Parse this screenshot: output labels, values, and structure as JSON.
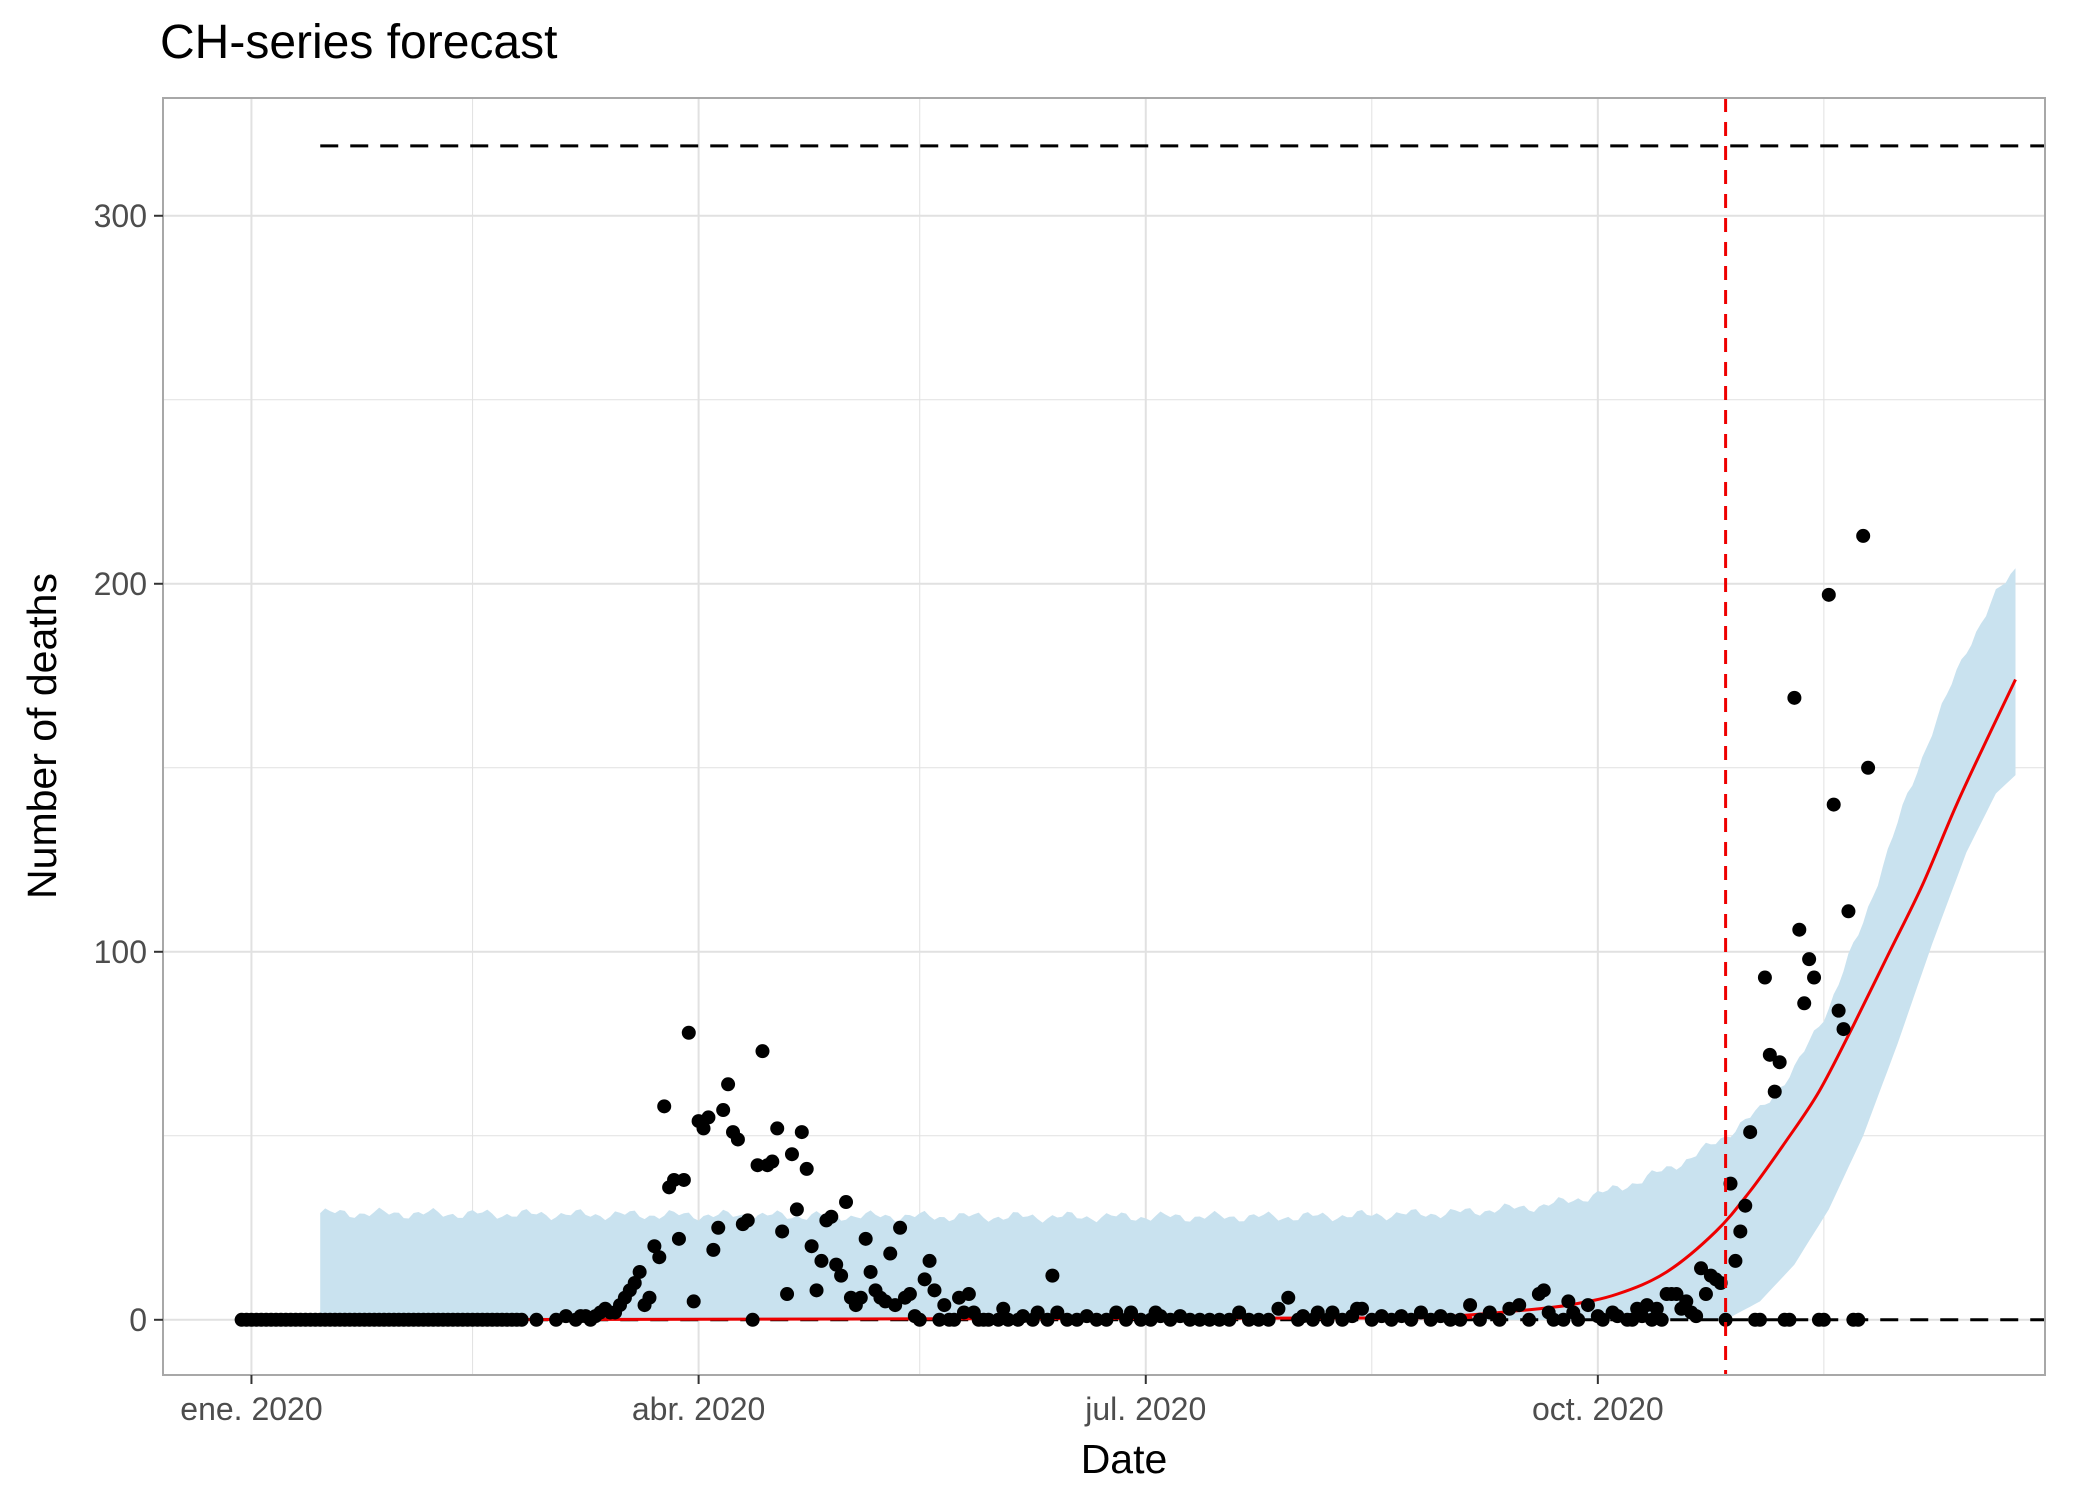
{
  "chart_data": {
    "type": "scatter",
    "title": "CH-series forecast",
    "xlabel": "Date",
    "ylabel": "Number of deaths",
    "x_range": [
      "2019-12-14",
      "2020-12-31"
    ],
    "ylim": [
      -15,
      332
    ],
    "x_ticks": [
      {
        "date": "2020-01-01",
        "label": "ene. 2020"
      },
      {
        "date": "2020-04-01",
        "label": "abr. 2020"
      },
      {
        "date": "2020-07-01",
        "label": "jul. 2020"
      },
      {
        "date": "2020-10-01",
        "label": "oct. 2020"
      }
    ],
    "x_minor_ticks": [
      "2020-02-15",
      "2020-05-16",
      "2020-08-16",
      "2020-11-16"
    ],
    "y_ticks": [
      0,
      100,
      200,
      300
    ],
    "y_minor_ticks": [
      50,
      150,
      250
    ],
    "grid": true,
    "colors": {
      "points": "#000000",
      "band": "#c9e2ef",
      "fit_line": "#ee0000",
      "reference_lines": "#000000",
      "cutoff_line": "#ee0000",
      "grid": "#e1e1e1",
      "panel_border": "#a8a8a8"
    },
    "reference_lines": {
      "upper": 319,
      "lower": 0,
      "start": "2020-01-15",
      "end": "2020-12-31"
    },
    "cutoff_date": "2020-10-27",
    "fit_start": "2020-01-15",
    "band": [
      {
        "date": "2020-01-15",
        "low": 0,
        "high": 29
      },
      {
        "date": "2020-06-01",
        "low": 0,
        "high": 28
      },
      {
        "date": "2020-08-01",
        "low": 0,
        "high": 28
      },
      {
        "date": "2020-09-01",
        "low": 0,
        "high": 29
      },
      {
        "date": "2020-09-20",
        "low": 0,
        "high": 31
      },
      {
        "date": "2020-10-01",
        "low": 0,
        "high": 34
      },
      {
        "date": "2020-10-10",
        "low": 0,
        "high": 38
      },
      {
        "date": "2020-10-20",
        "low": 0,
        "high": 44
      },
      {
        "date": "2020-10-27",
        "low": 0,
        "high": 50
      },
      {
        "date": "2020-11-03",
        "low": 5,
        "high": 57
      },
      {
        "date": "2020-11-10",
        "low": 15,
        "high": 68
      },
      {
        "date": "2020-11-17",
        "low": 30,
        "high": 85
      },
      {
        "date": "2020-11-24",
        "low": 50,
        "high": 108
      },
      {
        "date": "2020-12-01",
        "low": 75,
        "high": 135
      },
      {
        "date": "2020-12-08",
        "low": 102,
        "high": 160
      },
      {
        "date": "2020-12-15",
        "low": 127,
        "high": 182
      },
      {
        "date": "2020-12-21",
        "low": 143,
        "high": 197
      },
      {
        "date": "2020-12-25",
        "low": 148,
        "high": 204
      }
    ],
    "fit": [
      {
        "date": "2020-01-15",
        "y": 0
      },
      {
        "date": "2020-08-15",
        "y": 0.5
      },
      {
        "date": "2020-09-01",
        "y": 1
      },
      {
        "date": "2020-09-15",
        "y": 2.5
      },
      {
        "date": "2020-09-25",
        "y": 4
      },
      {
        "date": "2020-10-05",
        "y": 7
      },
      {
        "date": "2020-10-15",
        "y": 13
      },
      {
        "date": "2020-10-25",
        "y": 24
      },
      {
        "date": "2020-11-01",
        "y": 35
      },
      {
        "date": "2020-11-08",
        "y": 48
      },
      {
        "date": "2020-11-15",
        "y": 62
      },
      {
        "date": "2020-11-22",
        "y": 80
      },
      {
        "date": "2020-11-29",
        "y": 99
      },
      {
        "date": "2020-12-06",
        "y": 118
      },
      {
        "date": "2020-12-13",
        "y": 140
      },
      {
        "date": "2020-12-20",
        "y": 160
      },
      {
        "date": "2020-12-25",
        "y": 174
      }
    ],
    "zero_points": {
      "start": "2019-12-30",
      "end": "2020-02-24"
    },
    "points": [
      [
        "2020-02-25",
        0
      ],
      [
        "2020-02-28",
        0
      ],
      [
        "2020-03-03",
        0
      ],
      [
        "2020-03-05",
        1
      ],
      [
        "2020-03-07",
        0
      ],
      [
        "2020-03-08",
        1
      ],
      [
        "2020-03-09",
        1
      ],
      [
        "2020-03-10",
        0
      ],
      [
        "2020-03-11",
        1
      ],
      [
        "2020-03-12",
        2
      ],
      [
        "2020-03-13",
        3
      ],
      [
        "2020-03-14",
        2
      ],
      [
        "2020-03-15",
        2
      ],
      [
        "2020-03-16",
        4
      ],
      [
        "2020-03-17",
        6
      ],
      [
        "2020-03-18",
        8
      ],
      [
        "2020-03-19",
        10
      ],
      [
        "2020-03-20",
        13
      ],
      [
        "2020-03-21",
        4
      ],
      [
        "2020-03-22",
        6
      ],
      [
        "2020-03-23",
        20
      ],
      [
        "2020-03-24",
        17
      ],
      [
        "2020-03-25",
        58
      ],
      [
        "2020-03-26",
        36
      ],
      [
        "2020-03-27",
        38
      ],
      [
        "2020-03-28",
        22
      ],
      [
        "2020-03-29",
        38
      ],
      [
        "2020-03-30",
        78
      ],
      [
        "2020-03-31",
        5
      ],
      [
        "2020-04-01",
        54
      ],
      [
        "2020-04-02",
        52
      ],
      [
        "2020-04-03",
        55
      ],
      [
        "2020-04-04",
        19
      ],
      [
        "2020-04-05",
        25
      ],
      [
        "2020-04-06",
        57
      ],
      [
        "2020-04-07",
        64
      ],
      [
        "2020-04-08",
        51
      ],
      [
        "2020-04-09",
        49
      ],
      [
        "2020-04-10",
        26
      ],
      [
        "2020-04-11",
        27
      ],
      [
        "2020-04-12",
        0
      ],
      [
        "2020-04-13",
        42
      ],
      [
        "2020-04-14",
        73
      ],
      [
        "2020-04-15",
        42
      ],
      [
        "2020-04-16",
        43
      ],
      [
        "2020-04-17",
        52
      ],
      [
        "2020-04-18",
        24
      ],
      [
        "2020-04-19",
        7
      ],
      [
        "2020-04-20",
        45
      ],
      [
        "2020-04-21",
        30
      ],
      [
        "2020-04-22",
        51
      ],
      [
        "2020-04-23",
        41
      ],
      [
        "2020-04-24",
        20
      ],
      [
        "2020-04-25",
        8
      ],
      [
        "2020-04-26",
        16
      ],
      [
        "2020-04-27",
        27
      ],
      [
        "2020-04-28",
        28
      ],
      [
        "2020-04-29",
        15
      ],
      [
        "2020-04-30",
        12
      ],
      [
        "2020-05-01",
        32
      ],
      [
        "2020-05-02",
        6
      ],
      [
        "2020-05-03",
        4
      ],
      [
        "2020-05-04",
        6
      ],
      [
        "2020-05-05",
        22
      ],
      [
        "2020-05-06",
        13
      ],
      [
        "2020-05-07",
        8
      ],
      [
        "2020-05-08",
        6
      ],
      [
        "2020-05-09",
        5
      ],
      [
        "2020-05-10",
        18
      ],
      [
        "2020-05-11",
        4
      ],
      [
        "2020-05-12",
        25
      ],
      [
        "2020-05-13",
        6
      ],
      [
        "2020-05-14",
        7
      ],
      [
        "2020-05-15",
        1
      ],
      [
        "2020-05-16",
        0
      ],
      [
        "2020-05-17",
        11
      ],
      [
        "2020-05-18",
        16
      ],
      [
        "2020-05-19",
        8
      ],
      [
        "2020-05-20",
        0
      ],
      [
        "2020-05-21",
        4
      ],
      [
        "2020-05-22",
        0
      ],
      [
        "2020-05-23",
        0
      ],
      [
        "2020-05-24",
        6
      ],
      [
        "2020-05-25",
        2
      ],
      [
        "2020-05-26",
        7
      ],
      [
        "2020-05-27",
        2
      ],
      [
        "2020-05-28",
        0
      ],
      [
        "2020-05-29",
        0
      ],
      [
        "2020-05-30",
        0
      ],
      [
        "2020-06-01",
        0
      ],
      [
        "2020-06-02",
        3
      ],
      [
        "2020-06-03",
        0
      ],
      [
        "2020-06-05",
        0
      ],
      [
        "2020-06-06",
        1
      ],
      [
        "2020-06-08",
        0
      ],
      [
        "2020-06-09",
        2
      ],
      [
        "2020-06-11",
        0
      ],
      [
        "2020-06-12",
        12
      ],
      [
        "2020-06-13",
        2
      ],
      [
        "2020-06-15",
        0
      ],
      [
        "2020-06-17",
        0
      ],
      [
        "2020-06-19",
        1
      ],
      [
        "2020-06-21",
        0
      ],
      [
        "2020-06-23",
        0
      ],
      [
        "2020-06-25",
        2
      ],
      [
        "2020-06-27",
        0
      ],
      [
        "2020-06-28",
        2
      ],
      [
        "2020-06-30",
        0
      ],
      [
        "2020-07-02",
        0
      ],
      [
        "2020-07-03",
        2
      ],
      [
        "2020-07-04",
        1
      ],
      [
        "2020-07-06",
        0
      ],
      [
        "2020-07-08",
        1
      ],
      [
        "2020-07-10",
        0
      ],
      [
        "2020-07-12",
        0
      ],
      [
        "2020-07-14",
        0
      ],
      [
        "2020-07-16",
        0
      ],
      [
        "2020-07-18",
        0
      ],
      [
        "2020-07-20",
        2
      ],
      [
        "2020-07-22",
        0
      ],
      [
        "2020-07-24",
        0
      ],
      [
        "2020-07-26",
        0
      ],
      [
        "2020-07-28",
        3
      ],
      [
        "2020-07-30",
        6
      ],
      [
        "2020-08-01",
        0
      ],
      [
        "2020-08-02",
        1
      ],
      [
        "2020-08-04",
        0
      ],
      [
        "2020-08-05",
        2
      ],
      [
        "2020-08-07",
        0
      ],
      [
        "2020-08-08",
        2
      ],
      [
        "2020-08-10",
        0
      ],
      [
        "2020-08-12",
        1
      ],
      [
        "2020-08-13",
        3
      ],
      [
        "2020-08-14",
        3
      ],
      [
        "2020-08-16",
        0
      ],
      [
        "2020-08-18",
        1
      ],
      [
        "2020-08-20",
        0
      ],
      [
        "2020-08-22",
        1
      ],
      [
        "2020-08-24",
        0
      ],
      [
        "2020-08-26",
        2
      ],
      [
        "2020-08-28",
        0
      ],
      [
        "2020-08-30",
        1
      ],
      [
        "2020-09-01",
        0
      ],
      [
        "2020-09-03",
        0
      ],
      [
        "2020-09-05",
        4
      ],
      [
        "2020-09-07",
        0
      ],
      [
        "2020-09-09",
        2
      ],
      [
        "2020-09-11",
        0
      ],
      [
        "2020-09-13",
        3
      ],
      [
        "2020-09-15",
        4
      ],
      [
        "2020-09-17",
        0
      ],
      [
        "2020-09-19",
        7
      ],
      [
        "2020-09-20",
        8
      ],
      [
        "2020-09-21",
        2
      ],
      [
        "2020-09-22",
        0
      ],
      [
        "2020-09-24",
        0
      ],
      [
        "2020-09-25",
        5
      ],
      [
        "2020-09-26",
        2
      ],
      [
        "2020-09-27",
        0
      ],
      [
        "2020-09-29",
        4
      ],
      [
        "2020-10-01",
        1
      ],
      [
        "2020-10-02",
        0
      ],
      [
        "2020-10-04",
        2
      ],
      [
        "2020-10-05",
        1
      ],
      [
        "2020-10-07",
        0
      ],
      [
        "2020-10-08",
        0
      ],
      [
        "2020-10-09",
        3
      ],
      [
        "2020-10-10",
        1
      ],
      [
        "2020-10-11",
        4
      ],
      [
        "2020-10-12",
        0
      ],
      [
        "2020-10-13",
        3
      ],
      [
        "2020-10-14",
        0
      ],
      [
        "2020-10-15",
        7
      ],
      [
        "2020-10-16",
        7
      ],
      [
        "2020-10-17",
        7
      ],
      [
        "2020-10-18",
        3
      ],
      [
        "2020-10-19",
        5
      ],
      [
        "2020-10-20",
        2
      ],
      [
        "2020-10-21",
        1
      ],
      [
        "2020-10-22",
        14
      ],
      [
        "2020-10-23",
        7
      ],
      [
        "2020-10-24",
        12
      ],
      [
        "2020-10-25",
        11
      ],
      [
        "2020-10-26",
        10
      ],
      [
        "2020-10-27",
        0
      ],
      [
        "2020-10-28",
        37
      ],
      [
        "2020-10-29",
        16
      ],
      [
        "2020-10-30",
        24
      ],
      [
        "2020-10-31",
        31
      ],
      [
        "2020-11-01",
        51
      ],
      [
        "2020-11-02",
        0
      ],
      [
        "2020-11-03",
        0
      ],
      [
        "2020-11-04",
        93
      ],
      [
        "2020-11-05",
        72
      ],
      [
        "2020-11-06",
        62
      ],
      [
        "2020-11-07",
        70
      ],
      [
        "2020-11-08",
        0
      ],
      [
        "2020-11-09",
        0
      ],
      [
        "2020-11-10",
        169
      ],
      [
        "2020-11-11",
        106
      ],
      [
        "2020-11-12",
        86
      ],
      [
        "2020-11-13",
        98
      ],
      [
        "2020-11-14",
        93
      ],
      [
        "2020-11-15",
        0
      ],
      [
        "2020-11-16",
        0
      ],
      [
        "2020-11-17",
        197
      ],
      [
        "2020-11-18",
        140
      ],
      [
        "2020-11-19",
        84
      ],
      [
        "2020-11-20",
        79
      ],
      [
        "2020-11-21",
        111
      ],
      [
        "2020-11-22",
        0
      ],
      [
        "2020-11-23",
        0
      ],
      [
        "2020-11-24",
        213
      ],
      [
        "2020-11-25",
        150
      ]
    ]
  }
}
